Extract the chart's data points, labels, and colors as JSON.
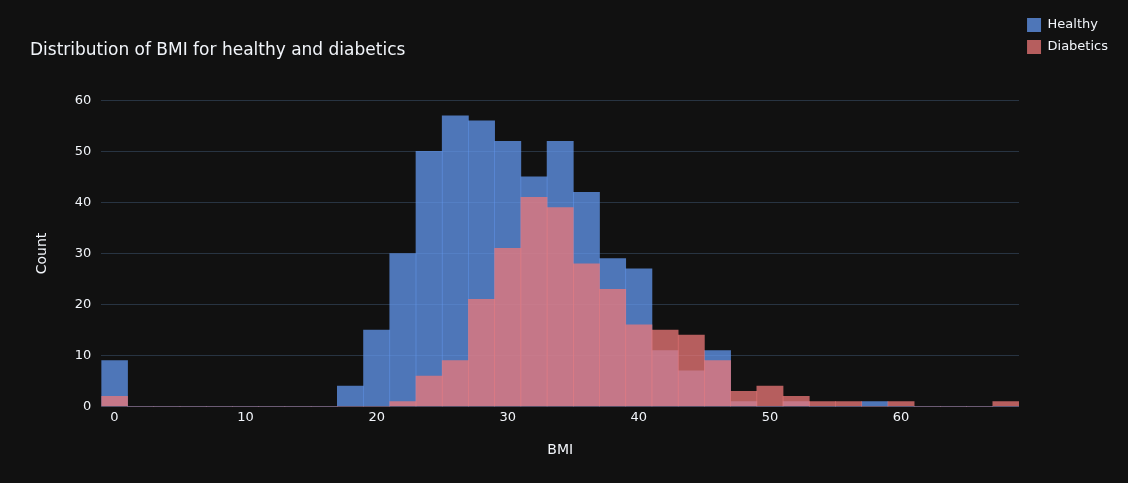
{
  "chart_data": {
    "type": "histogram",
    "title": "Distribution of BMI for healthy and diabetics",
    "xlabel": "BMI",
    "ylabel": "Count",
    "bins": [
      -1,
      1,
      3,
      5,
      7,
      9,
      11,
      13,
      15,
      17,
      19,
      21,
      23,
      25,
      27,
      29,
      31,
      33,
      35,
      37,
      39,
      41,
      43,
      45,
      47,
      49,
      51,
      53,
      55,
      57,
      59,
      61,
      63,
      65,
      67,
      69
    ],
    "series": [
      {
        "name": "Healthy",
        "color": "#6398f0",
        "values": [
          9,
          0,
          0,
          0,
          0,
          0,
          0,
          0,
          0,
          4,
          15,
          30,
          50,
          57,
          56,
          52,
          45,
          52,
          42,
          29,
          27,
          11,
          7,
          11,
          1,
          0,
          1,
          0,
          0,
          1,
          0,
          0,
          0,
          0,
          0
        ]
      },
      {
        "name": "Diabetics",
        "color": "#ee7878",
        "values": [
          2,
          0,
          0,
          0,
          0,
          0,
          0,
          0,
          0,
          0,
          0,
          1,
          6,
          9,
          21,
          31,
          41,
          39,
          28,
          23,
          16,
          15,
          14,
          9,
          3,
          4,
          2,
          1,
          1,
          0,
          1,
          0,
          0,
          0,
          1
        ]
      }
    ],
    "xlim": [
      -1,
      69
    ],
    "xticks": [
      0,
      10,
      20,
      30,
      40,
      50,
      60
    ],
    "ylim": [
      0,
      60
    ],
    "yticks": [
      0,
      10,
      20,
      30,
      40,
      50,
      60
    ],
    "grid": "y",
    "legend": "top right"
  }
}
